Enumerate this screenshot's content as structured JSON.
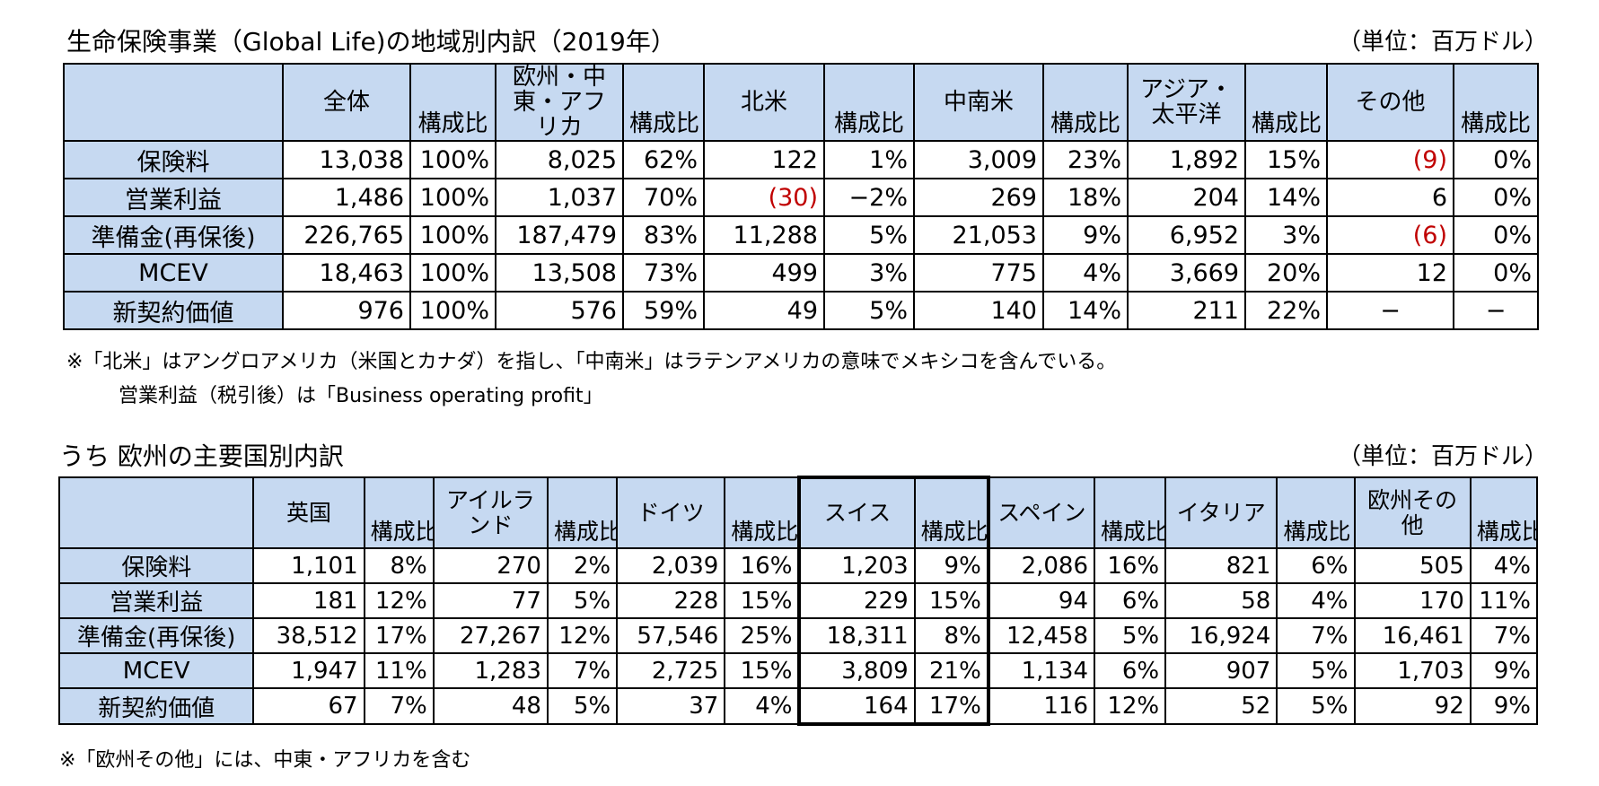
{
  "table1": {
    "title": "生命保険事業（Global Life)の地域別内訳（2019年）",
    "unit": "（単位：百万ドル）",
    "ratio_label": "構成比",
    "regions": [
      "全体",
      "欧州・中東・アフリカ",
      "北米",
      "中南米",
      "アジア・太平洋",
      "その他"
    ],
    "rows": [
      {
        "label": "保険料",
        "cells": [
          "13,038",
          "100%",
          "8,025",
          "62%",
          "122",
          "1%",
          "3,009",
          "23%",
          "1,892",
          "15%",
          "(9)",
          "0%"
        ]
      },
      {
        "label": "営業利益",
        "cells": [
          "1,486",
          "100%",
          "1,037",
          "70%",
          "(30)",
          "−2%",
          "269",
          "18%",
          "204",
          "14%",
          "6",
          "0%"
        ]
      },
      {
        "label": "準備金(再保後)",
        "cells": [
          "226,765",
          "100%",
          "187,479",
          "83%",
          "11,288",
          "5%",
          "21,053",
          "9%",
          "6,952",
          "3%",
          "(6)",
          "0%"
        ]
      },
      {
        "label": "MCEV",
        "cells": [
          "18,463",
          "100%",
          "13,508",
          "73%",
          "499",
          "3%",
          "775",
          "4%",
          "3,669",
          "20%",
          "12",
          "0%"
        ]
      },
      {
        "label": "新契約価値",
        "cells": [
          "976",
          "100%",
          "576",
          "59%",
          "49",
          "5%",
          "140",
          "14%",
          "211",
          "22%",
          "−",
          "−"
        ]
      }
    ],
    "notes": [
      "※「北米」はアングロアメリカ（米国とカナダ）を指し、「中南米」はラテンアメリカの意味でメキシコを含んでいる。",
      "営業利益（税引後）は「Business operating profit」"
    ],
    "negative_color": "#c00000",
    "header_color": "#c6d9f1"
  },
  "table2": {
    "title": "うち  欧州の主要国別内訳",
    "unit": "（単位：百万ドル）",
    "ratio_label": "構成比",
    "countries": [
      "英国",
      "アイルランド",
      "ドイツ",
      "スイス",
      "スペイン",
      "イタリア",
      "欧州その他"
    ],
    "rows": [
      {
        "label": "保険料",
        "cells": [
          "1,101",
          "8%",
          "270",
          "2%",
          "2,039",
          "16%",
          "1,203",
          "9%",
          "2,086",
          "16%",
          "821",
          "6%",
          "505",
          "4%"
        ]
      },
      {
        "label": "営業利益",
        "cells": [
          "181",
          "12%",
          "77",
          "5%",
          "228",
          "15%",
          "229",
          "15%",
          "94",
          "6%",
          "58",
          "4%",
          "170",
          "11%"
        ]
      },
      {
        "label": "準備金(再保後)",
        "cells": [
          "38,512",
          "17%",
          "27,267",
          "12%",
          "57,546",
          "25%",
          "18,311",
          "8%",
          "12,458",
          "5%",
          "16,924",
          "7%",
          "16,461",
          "7%"
        ]
      },
      {
        "label": "MCEV",
        "cells": [
          "1,947",
          "11%",
          "1,283",
          "7%",
          "2,725",
          "15%",
          "3,809",
          "21%",
          "1,134",
          "6%",
          "907",
          "5%",
          "1,703",
          "9%"
        ]
      },
      {
        "label": "新契約価値",
        "cells": [
          "67",
          "7%",
          "48",
          "5%",
          "37",
          "4%",
          "164",
          "17%",
          "116",
          "12%",
          "52",
          "5%",
          "92",
          "9%"
        ]
      }
    ],
    "note": "※「欧州その他」には、中東・アフリカを含む"
  }
}
